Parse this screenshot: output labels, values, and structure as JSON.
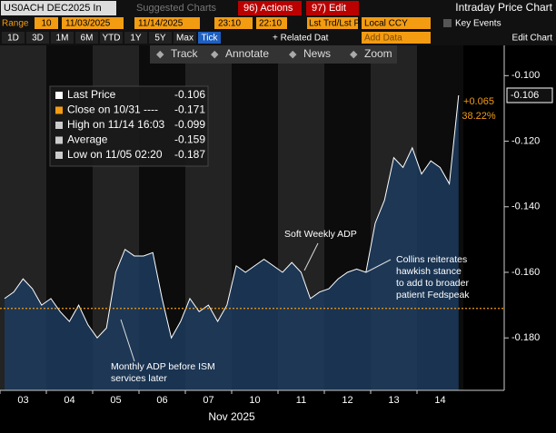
{
  "toolbar": {
    "ticker": "US0ACH DEC2025 In",
    "suggested": "Suggested Charts",
    "actions": "96) Actions",
    "edit": "97) Edit",
    "window_title": "Intraday Price Chart",
    "range_label": "Range",
    "range_value": "10",
    "start_date": "11/03/2025",
    "end_date": "11/14/2025",
    "start_time": "23:10",
    "end_time": "22:10",
    "field": "Lst Trd/Lst P",
    "currency": "Local CCY",
    "key_events": "Key Events",
    "periods": [
      "1D",
      "3D",
      "1M",
      "6M",
      "YTD",
      "1Y",
      "5Y",
      "Max",
      "Tick"
    ],
    "related": "+ Related Dat",
    "add_data": "Add Data",
    "edit_chart": "Edit Chart",
    "tools": [
      "Track",
      "Annotate",
      "News",
      "Zoom"
    ]
  },
  "chart_data": {
    "type": "area",
    "x_label": "Nov 2025",
    "categories": [
      "03",
      null,
      null,
      null,
      null,
      "04",
      null,
      null,
      null,
      null,
      "05",
      null,
      null,
      null,
      null,
      "06",
      null,
      null,
      null,
      null,
      "07",
      null,
      null,
      null,
      null,
      "10",
      null,
      null,
      null,
      null,
      "11",
      null,
      null,
      null,
      null,
      "12",
      null,
      null,
      null,
      null,
      "13",
      null,
      null,
      null,
      null,
      "14",
      null,
      null,
      null,
      null
    ],
    "series": [
      {
        "name": "Last Price",
        "color": "#ffffff",
        "values": [
          -0.168,
          -0.166,
          -0.162,
          -0.165,
          -0.17,
          -0.168,
          -0.172,
          -0.175,
          -0.17,
          -0.176,
          -0.18,
          -0.177,
          -0.16,
          -0.153,
          -0.155,
          -0.155,
          -0.154,
          -0.168,
          -0.18,
          -0.175,
          -0.168,
          -0.172,
          -0.17,
          -0.175,
          -0.17,
          -0.158,
          -0.16,
          -0.158,
          -0.156,
          -0.158,
          -0.16,
          -0.157,
          -0.16,
          -0.168,
          -0.166,
          -0.165,
          -0.162,
          -0.16,
          -0.159,
          -0.16,
          -0.145,
          -0.138,
          -0.125,
          -0.128,
          -0.122,
          -0.13,
          -0.126,
          -0.128,
          -0.133,
          -0.106
        ]
      }
    ],
    "ylim": [
      -0.196,
      -0.088
    ],
    "yticks": [
      {
        "value": -0.1,
        "label": "-0.100"
      },
      {
        "value": -0.12,
        "label": "-0.120"
      },
      {
        "value": -0.14,
        "label": "-0.140"
      },
      {
        "value": -0.16,
        "label": "-0.160"
      },
      {
        "value": -0.18,
        "label": "-0.180"
      }
    ],
    "legend": [
      {
        "label": "Last Price",
        "value": -0.106,
        "color": "#ffffff"
      },
      {
        "label": "Close on 10/31 ----",
        "value": -0.171,
        "color": "#f39c12"
      },
      {
        "label": "High on 11/14 16:03",
        "value": -0.099,
        "color": "#cccccc"
      },
      {
        "label": "Average",
        "value": -0.159,
        "color": "#cccccc"
      },
      {
        "label": "Low on 11/05 02:20",
        "value": -0.187,
        "color": "#cccccc"
      }
    ],
    "change": "+0.065",
    "change_pct": "38.22%",
    "annotations": [
      [
        "Soft Weekly ADP"
      ],
      [
        "Collins reiterates",
        "hawkish stance",
        "to add to broader",
        "patient Fedspeak"
      ],
      [
        "Monthly ADP before ISM",
        "services later"
      ]
    ]
  }
}
